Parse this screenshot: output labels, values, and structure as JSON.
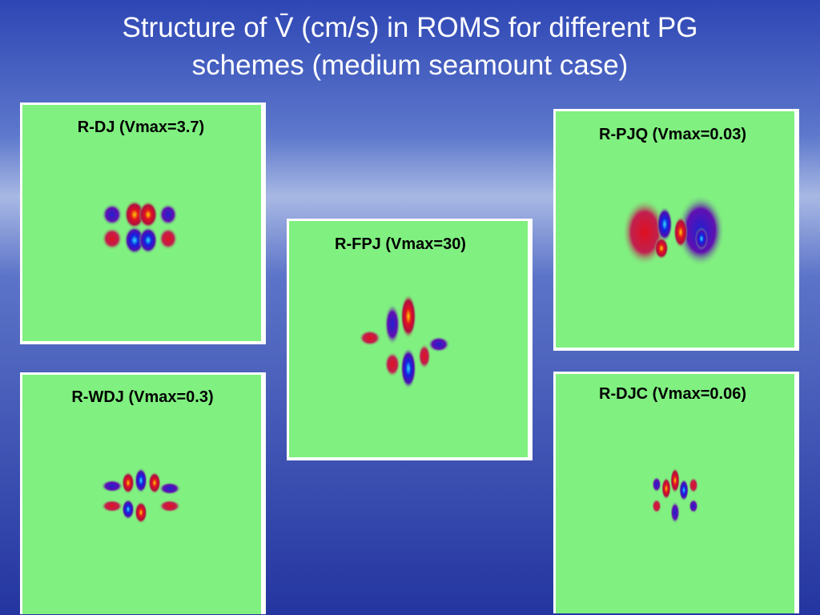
{
  "title": {
    "lines": [
      "Structure of V̄ (cm/s) in ROMS for different PG",
      "schemes (medium seamount case)"
    ]
  },
  "panels": [
    {
      "label": "R-DJ (Vmax=3.7)"
    },
    {
      "label": "R-PJQ (Vmax=0.03)"
    },
    {
      "label": "R-FPJ (Vmax=30)"
    },
    {
      "label": "R-WDJ (Vmax=0.3)"
    },
    {
      "label": "R-DJC (Vmax=0.06)"
    }
  ]
}
